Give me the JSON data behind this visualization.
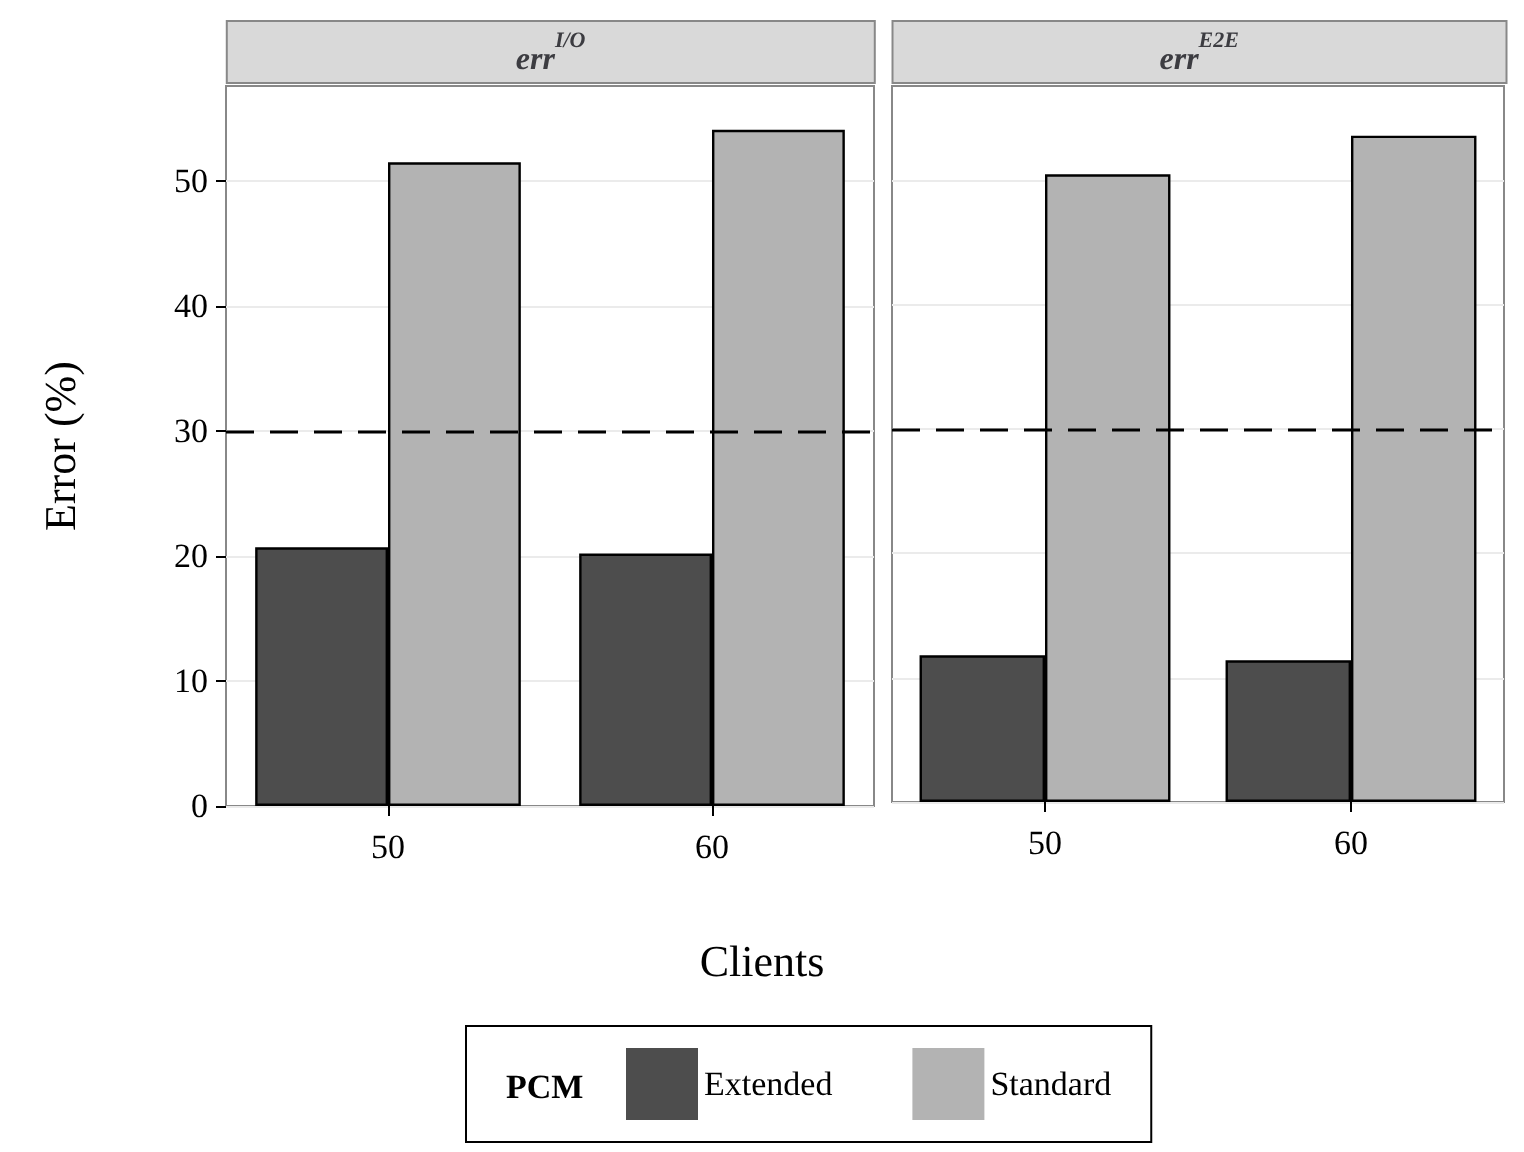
{
  "chart_data": [
    {
      "type": "bar",
      "title": "err$^{I/O}$",
      "ylabel": "Error (%)",
      "xlabel": "Clients",
      "legend_title": "PCM",
      "legend": "bottom",
      "categories": [
        "50",
        "60"
      ],
      "series": [
        {
          "name": "Extended",
          "color": "#4d4d4d",
          "values": [
            20.7,
            20.2
          ]
        },
        {
          "name": "Standard",
          "color": "#b3b3b3",
          "values": [
            51.5,
            54.1
          ]
        }
      ],
      "ylim": [
        0,
        57.6
      ],
      "yticks": [
        0,
        10,
        20,
        30,
        40,
        50
      ],
      "grid": "y",
      "ref_lines": [
        {
          "axis": "y",
          "value": 30,
          "line_style": "dashed",
          "color": "#000000"
        }
      ]
    },
    {
      "type": "bar",
      "title": "err$^{E2E}$",
      "categories": [
        "50",
        "60"
      ],
      "series": [
        {
          "color": "#4d4d4d",
          "values": [
            11.8,
            11.4
          ]
        },
        {
          "color": "#b3b3b3",
          "values": [
            50.5,
            53.6
          ]
        }
      ],
      "ylim": [
        0,
        57.6
      ],
      "yticks": [
        0,
        10,
        20,
        30,
        40,
        50
      ],
      "grid": "y",
      "tick_labels": "x",
      "ref_lines": [
        {
          "axis": "y",
          "value": 30,
          "line_style": "dashed",
          "color": "#000000"
        }
      ]
    }
  ]
}
